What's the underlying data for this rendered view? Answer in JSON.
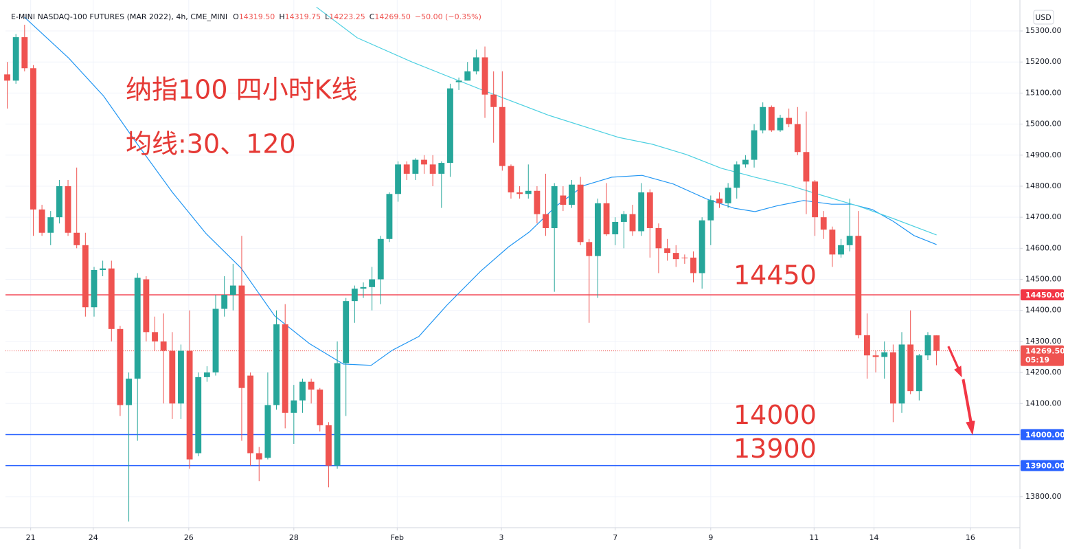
{
  "header": {
    "symbol": "E-MINI NASDAQ-100 FUTURES (MAR 2022), 4h, CME_MINI",
    "ohlc": [
      {
        "key": "O",
        "value": "14319.50"
      },
      {
        "key": "H",
        "value": "14319.75"
      },
      {
        "key": "L",
        "value": "14223.25"
      },
      {
        "key": "C",
        "value": "14269.50"
      }
    ],
    "change": "−50.00 (−0.35%)",
    "currency": "USD"
  },
  "annotations": {
    "title": "纳指100 四小时K线",
    "subtitle": "均线:30、120"
  },
  "chart_data": {
    "type": "candlestick",
    "up_color": "#26a69a",
    "down_color": "#ef5350",
    "x": [
      0,
      1,
      2,
      3,
      4,
      5,
      6,
      7,
      8,
      9,
      10,
      11,
      12,
      13,
      14,
      15,
      16,
      17,
      18,
      19,
      20,
      21,
      22,
      23,
      24,
      25,
      26,
      27,
      28,
      29,
      30,
      31,
      32,
      33,
      34,
      35,
      36,
      37,
      38,
      39,
      40,
      41,
      42,
      43,
      44,
      45,
      46,
      47,
      48,
      49,
      50,
      51,
      52,
      53,
      54,
      55,
      56,
      57,
      58,
      59,
      60,
      61,
      62,
      63,
      64,
      65,
      66,
      67,
      68,
      69,
      70,
      71,
      72,
      73,
      74,
      75,
      76,
      77,
      78,
      79,
      80,
      81,
      82,
      83,
      84,
      85,
      86,
      87,
      88,
      89,
      90,
      91,
      92,
      93,
      94,
      95,
      96,
      97,
      98,
      99,
      100,
      101,
      102,
      103,
      104,
      105,
      106,
      107
    ],
    "open": [
      15160,
      15140,
      15280,
      15180,
      14725,
      14650,
      14700,
      14800,
      14650,
      14610,
      14410,
      14530,
      14535,
      14340,
      14095,
      14180,
      14500,
      14330,
      14300,
      14270,
      14100,
      14270,
      13940,
      14185,
      14200,
      14405,
      14450,
      14480,
      14190,
      13940,
      13925,
      14095,
      14355,
      14070,
      14110,
      14170,
      14145,
      14030,
      13900,
      14230,
      14430,
      14470,
      14475,
      14500,
      14630,
      14775,
      14870,
      14840,
      14885,
      14870,
      14840,
      14875,
      15135,
      15140,
      15170,
      15215,
      15095,
      15055,
      14865,
      14780,
      14775,
      14785,
      14710,
      14665,
      14770,
      14740,
      14805,
      14620,
      14575,
      14745,
      14645,
      14685,
      14710,
      14655,
      14780,
      14665,
      14600,
      14585,
      14570,
      14570,
      14520,
      14690,
      14760,
      14745,
      14795,
      14870,
      14885,
      14980,
      15055,
      14980,
      15020,
      15000,
      14910,
      14815,
      14700,
      14660,
      14580,
      14610,
      14640,
      14320,
      14255,
      14250,
      14265,
      14100,
      14290,
      14140,
      14255,
      14319.5
    ],
    "high": [
      15200,
      15290,
      15320,
      15190,
      14740,
      14720,
      14820,
      14820,
      14860,
      14650,
      14540,
      14560,
      14560,
      14350,
      14200,
      14520,
      14510,
      14380,
      14390,
      14330,
      14290,
      14400,
      14200,
      14220,
      14450,
      14510,
      14550,
      14640,
      14200,
      13960,
      14200,
      14400,
      14420,
      14160,
      14180,
      14180,
      14150,
      14040,
      14300,
      14440,
      14480,
      14490,
      14540,
      14640,
      14780,
      14880,
      14880,
      14890,
      14900,
      14900,
      14880,
      15130,
      15150,
      15200,
      15240,
      15250,
      15170,
      15170,
      14870,
      14800,
      14870,
      14800,
      14840,
      14810,
      14800,
      14820,
      14830,
      14630,
      14760,
      14810,
      14700,
      14720,
      14740,
      14810,
      14790,
      14680,
      14630,
      14610,
      14580,
      14590,
      14700,
      14770,
      14780,
      14810,
      14880,
      14900,
      15000,
      15070,
      15060,
      15030,
      15050,
      15055,
      15040,
      14820,
      14720,
      14670,
      14630,
      14760,
      14720,
      14390,
      14270,
      14300,
      14290,
      14330,
      14400,
      14260,
      14330,
      14319.75
    ],
    "low": [
      15050,
      15130,
      15170,
      14640,
      14640,
      14610,
      14680,
      14640,
      14600,
      14380,
      14380,
      14510,
      14300,
      14060,
      13720,
      13980,
      14300,
      14270,
      14100,
      14050,
      14050,
      13890,
      13930,
      14170,
      14190,
      14380,
      14400,
      13980,
      13900,
      13850,
      13920,
      14080,
      14020,
      13970,
      14070,
      14100,
      14010,
      13830,
      13890,
      14060,
      14360,
      14440,
      14400,
      14420,
      14620,
      14750,
      14820,
      14820,
      14840,
      14800,
      14730,
      14830,
      15110,
      15140,
      15160,
      15020,
      14940,
      14850,
      14760,
      14760,
      14760,
      14680,
      14640,
      14460,
      14720,
      14730,
      14610,
      14360,
      14440,
      14640,
      14610,
      14600,
      14640,
      14640,
      14570,
      14520,
      14560,
      14540,
      14550,
      14490,
      14470,
      14610,
      14730,
      14730,
      14760,
      14860,
      14860,
      14970,
      14975,
      14975,
      14990,
      14900,
      14710,
      14640,
      14630,
      14540,
      14570,
      14590,
      14310,
      14180,
      14200,
      14180,
      14040,
      14070,
      14130,
      14110,
      14240,
      14223.25
    ],
    "close": [
      15140,
      15280,
      15180,
      14725,
      14650,
      14700,
      14800,
      14650,
      14610,
      14410,
      14530,
      14535,
      14340,
      14095,
      14180,
      14505,
      14330,
      14300,
      14270,
      14100,
      14270,
      13920,
      14185,
      14200,
      14405,
      14450,
      14480,
      14150,
      13940,
      13920,
      14095,
      14355,
      14070,
      14110,
      14170,
      14145,
      14030,
      13900,
      14230,
      14430,
      14470,
      14475,
      14500,
      14630,
      14775,
      14870,
      14840,
      14885,
      14870,
      14840,
      14875,
      15115,
      15140,
      15170,
      15215,
      15095,
      15055,
      14865,
      14780,
      14775,
      14785,
      14710,
      14665,
      14800,
      14740,
      14805,
      14620,
      14575,
      14745,
      14645,
      14685,
      14710,
      14655,
      14780,
      14665,
      14600,
      14585,
      14565,
      14568,
      14520,
      14690,
      14755,
      14745,
      14795,
      14870,
      14885,
      14980,
      15055,
      14980,
      15020,
      15000,
      14910,
      14815,
      14700,
      14660,
      14580,
      14610,
      14640,
      14320,
      14255,
      14250,
      14265,
      14100,
      14290,
      14140,
      14255,
      14320,
      14269.5
    ],
    "moving_averages": [
      {
        "color": "#2196f3",
        "x": [
          2.0,
          7.1,
          11.1,
          15.0,
          19.0,
          22.9,
          26.9,
          30.8,
          34.8,
          38.7,
          41.9,
          44.3,
          47.4,
          50.6,
          54.5,
          57.7,
          60.1,
          63.2,
          66.4,
          69.6,
          73.1,
          76.7,
          80.6,
          83.7,
          86.1,
          88.5,
          91.7,
          94.9,
          97.2,
          99.6,
          102.0,
          104.4,
          107.0
        ],
        "values": [
          15344,
          15212,
          15090,
          14935,
          14781,
          14647,
          14537,
          14382,
          14293,
          14227,
          14223,
          14271,
          14316,
          14416,
          14526,
          14604,
          14652,
          14736,
          14802,
          14829,
          14835,
          14807,
          14758,
          14729,
          14718,
          14736,
          14754,
          14742,
          14742,
          14725,
          14687,
          14641,
          14612
        ]
      },
      {
        "color": "#4dd0e1",
        "x": [
          35.6,
          40.3,
          46.6,
          54.5,
          62.4,
          70.4,
          74.3,
          78.2,
          82.2,
          86.1,
          90.1,
          94.0,
          98.0,
          102.0,
          107.0
        ],
        "values": [
          15377,
          15278,
          15200,
          15112,
          15028,
          14957,
          14935,
          14902,
          14858,
          14829,
          14802,
          14769,
          14736,
          14696,
          14643
        ]
      }
    ],
    "levels": [
      {
        "value": 14450,
        "label": "14450.00",
        "annotation": "14450",
        "color": "#f23645"
      },
      {
        "value": 14000,
        "label": "14000.00",
        "annotation": "14000",
        "color": "#2962ff"
      },
      {
        "value": 13900,
        "label": "13900.00",
        "annotation": "13900",
        "color": "#2962ff"
      }
    ],
    "last_price": {
      "value": 14269.5,
      "label": "14269.50",
      "countdown": "05:19",
      "color": "#ef5350"
    },
    "xlim": [
      -0.2,
      116.6
    ],
    "ylim": [
      13700,
      15382
    ],
    "xticks": [
      {
        "value": 2.7,
        "label": "21"
      },
      {
        "value": 9.9,
        "label": "24"
      },
      {
        "value": 20.9,
        "label": "26"
      },
      {
        "value": 33.0,
        "label": "28"
      },
      {
        "value": 44.9,
        "label": "Feb"
      },
      {
        "value": 56.9,
        "label": "3"
      },
      {
        "value": 70.0,
        "label": "7"
      },
      {
        "value": 81.0,
        "label": "9"
      },
      {
        "value": 92.9,
        "label": "11"
      },
      {
        "value": 99.8,
        "label": "14"
      },
      {
        "value": 110.9,
        "label": "16"
      }
    ],
    "yticks": [
      {
        "value": 13800,
        "label": "13800.00"
      },
      {
        "value": 13900,
        "label": "13900.00"
      },
      {
        "value": 14000,
        "label": "14000.00"
      },
      {
        "value": 14100,
        "label": "14100.00"
      },
      {
        "value": 14200,
        "label": "14200.00"
      },
      {
        "value": 14300,
        "label": "14300.00"
      },
      {
        "value": 14400,
        "label": "14400.00"
      },
      {
        "value": 14500,
        "label": "14500.00"
      },
      {
        "value": 14600,
        "label": "14600.00"
      },
      {
        "value": 14700,
        "label": "14700.00"
      },
      {
        "value": 14800,
        "label": "14800.00"
      },
      {
        "value": 14900,
        "label": "14900.00"
      },
      {
        "value": 15000,
        "label": "15000.00"
      },
      {
        "value": 15100,
        "label": "15100.00"
      },
      {
        "value": 15200,
        "label": "15200.00"
      },
      {
        "value": 15300,
        "label": "15300.00"
      }
    ],
    "grid": true
  }
}
